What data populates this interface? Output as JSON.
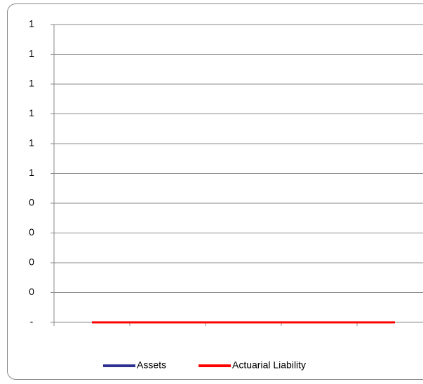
{
  "chart_data": {
    "type": "line",
    "categories": [
      null,
      null,
      null,
      null,
      null
    ],
    "series": [
      {
        "name": "Assets",
        "color": "#2e3192",
        "values": [
          0,
          0,
          0,
          0,
          0
        ]
      },
      {
        "name": "Actuarial Liability",
        "color": "#ff0000",
        "values": [
          0,
          0,
          0,
          0,
          0
        ]
      }
    ],
    "ylim": [
      0,
      1
    ],
    "yticks": [
      {
        "value": 0,
        "label": "-"
      },
      {
        "value": 0.1,
        "label": "0"
      },
      {
        "value": 0.2,
        "label": "0"
      },
      {
        "value": 0.3,
        "label": "0"
      },
      {
        "value": 0.4,
        "label": "0"
      },
      {
        "value": 0.5,
        "label": "1"
      },
      {
        "value": 0.6,
        "label": "1"
      },
      {
        "value": 0.7,
        "label": "1"
      },
      {
        "value": 0.8,
        "label": "1"
      },
      {
        "value": 0.9,
        "label": "1"
      },
      {
        "value": 1,
        "label": "1"
      }
    ],
    "grid": true,
    "legend": "bottom"
  }
}
